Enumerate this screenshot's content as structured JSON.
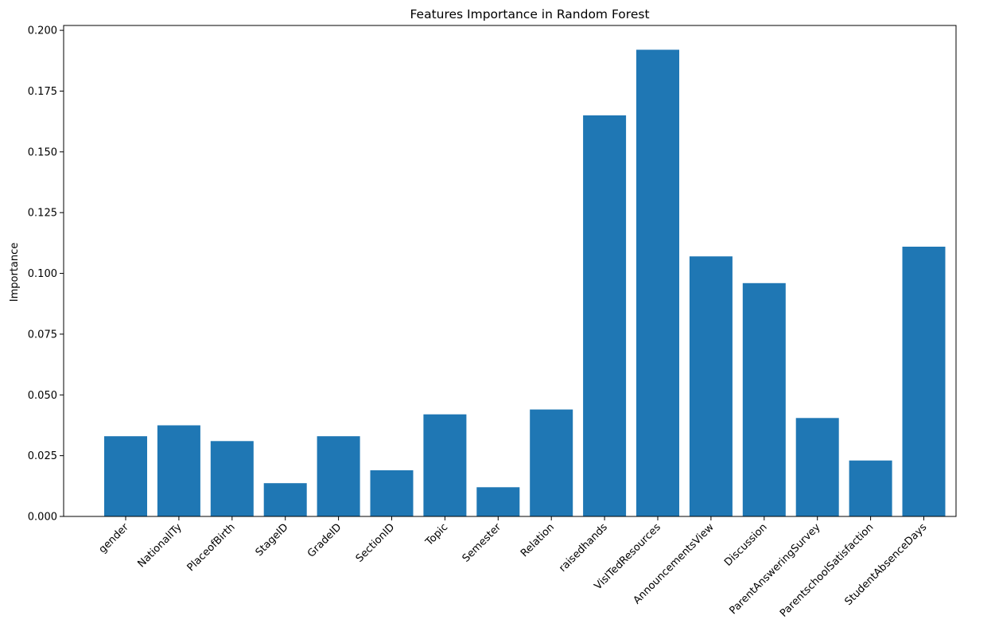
{
  "chart_data": {
    "type": "bar",
    "title": "Features Importance in Random Forest",
    "xlabel": "",
    "ylabel": "Importance",
    "ylim": [
      0,
      0.202
    ],
    "yticks": [
      "0.000",
      "0.025",
      "0.050",
      "0.075",
      "0.100",
      "0.125",
      "0.150",
      "0.175",
      "0.200"
    ],
    "ytick_values": [
      0,
      0.025,
      0.05,
      0.075,
      0.1,
      0.125,
      0.15,
      0.175,
      0.2
    ],
    "categories": [
      "gender",
      "NationalITy",
      "PlaceofBirth",
      "StageID",
      "GradeID",
      "SectionID",
      "Topic",
      "Semester",
      "Relation",
      "raisedhands",
      "VisITedResources",
      "AnnouncementsView",
      "Discussion",
      "ParentAnsweringSurvey",
      "ParentschoolSatisfaction",
      "StudentAbsenceDays"
    ],
    "values": [
      0.033,
      0.0375,
      0.031,
      0.0137,
      0.033,
      0.019,
      0.042,
      0.012,
      0.044,
      0.165,
      0.192,
      0.107,
      0.096,
      0.0405,
      0.023,
      0.111
    ],
    "bar_color": "#1f77b4",
    "grid": false,
    "legend": "none"
  }
}
